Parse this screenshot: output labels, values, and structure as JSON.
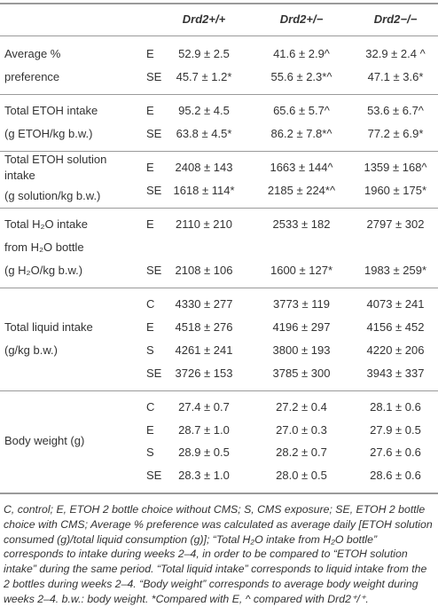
{
  "table": {
    "columns": [
      "Drd2+/+",
      "Drd2+/−",
      "Drd2−/−"
    ],
    "groups": [
      {
        "label": [
          "Average %",
          "preference"
        ],
        "rows": [
          {
            "condition": "E",
            "values": [
              "52.9 ± 2.5",
              "41.6 ± 2.9^",
              "32.9 ± 2.4 ^"
            ]
          },
          {
            "condition": "SE",
            "values": [
              "45.7 ± 1.2*",
              "55.6 ± 2.3*^",
              "47.1 ± 3.6*"
            ]
          }
        ]
      },
      {
        "label": [
          "Total ETOH intake",
          "(g ETOH/kg b.w.)"
        ],
        "rows": [
          {
            "condition": "E",
            "values": [
              "95.2 ± 4.5",
              "65.6 ± 5.7^",
              "53.6 ± 6.7^"
            ]
          },
          {
            "condition": "SE",
            "values": [
              "63.8 ± 4.5*",
              "86.2 ± 7.8*^",
              "77.2 ± 6.9*"
            ]
          }
        ]
      },
      {
        "label": [
          "Total ETOH solution",
          "intake",
          "(g solution/kg b.w.)"
        ],
        "rows": [
          {
            "condition": "E",
            "values": [
              "2408 ± 143",
              "1663 ± 144^",
              "1359 ± 168^"
            ]
          },
          {
            "condition": "SE",
            "values": [
              "1618 ± 114*",
              "2185 ± 224*^",
              "1960 ± 175*"
            ]
          }
        ]
      },
      {
        "label": [
          "Total H₂O intake",
          "from H₂O bottle",
          "(g H₂O/kg b.w.)"
        ],
        "rows": [
          {
            "condition": "E",
            "values": [
              "2110 ± 210",
              "2533 ± 182",
              "2797 ± 302"
            ]
          },
          {
            "condition": "SE",
            "values": [
              "2108 ± 106",
              "1600 ± 127*",
              "1983 ± 259*"
            ]
          }
        ]
      },
      {
        "label": [
          "Total liquid intake",
          "(g/kg b.w.)"
        ],
        "rows": [
          {
            "condition": "C",
            "values": [
              "4330 ± 277",
              "3773 ± 119",
              "4073 ± 241"
            ]
          },
          {
            "condition": "E",
            "values": [
              "4518 ± 276",
              "4196 ± 297",
              "4156 ± 452"
            ]
          },
          {
            "condition": "S",
            "values": [
              "4261 ± 241",
              "3800 ± 193",
              "4220 ± 206"
            ]
          },
          {
            "condition": "SE",
            "values": [
              "3726 ± 153",
              "3785 ± 300",
              "3943 ± 337"
            ]
          }
        ]
      },
      {
        "label": [
          "Body weight (g)"
        ],
        "rows": [
          {
            "condition": "C",
            "values": [
              "27.4 ± 0.7",
              "27.2 ± 0.4",
              "28.1 ± 0.6"
            ]
          },
          {
            "condition": "E",
            "values": [
              "28.7 ± 1.0",
              "27.0 ± 0.3",
              "27.9 ± 0.5"
            ]
          },
          {
            "condition": "S",
            "values": [
              "28.9 ± 0.5",
              "28.2 ± 0.7",
              "27.6 ± 0.6"
            ]
          },
          {
            "condition": "SE",
            "values": [
              "28.3 ± 1.0",
              "28.0 ± 0.5",
              "28.6 ± 0.6"
            ]
          }
        ]
      }
    ]
  },
  "footnote": "C, control; E, ETOH 2 bottle choice without CMS; S, CMS exposure; SE, ETOH 2 bottle choice with CMS; Average % preference was calculated as average daily [ETOH solution consumed (g)/total liquid consumption (g)]; “Total H₂O intake from H₂O bottle” corresponds to intake during weeks 2–4, in order to be compared to “ETOH solution intake” during the same period. “Total liquid intake” corresponds to liquid intake from the 2 bottles during weeks 2–4. “Body weight” corresponds to average body weight during weeks 2–4. b.w.: body weight. *Compared with E, ^ compared with Drd2⁺/⁺."
}
